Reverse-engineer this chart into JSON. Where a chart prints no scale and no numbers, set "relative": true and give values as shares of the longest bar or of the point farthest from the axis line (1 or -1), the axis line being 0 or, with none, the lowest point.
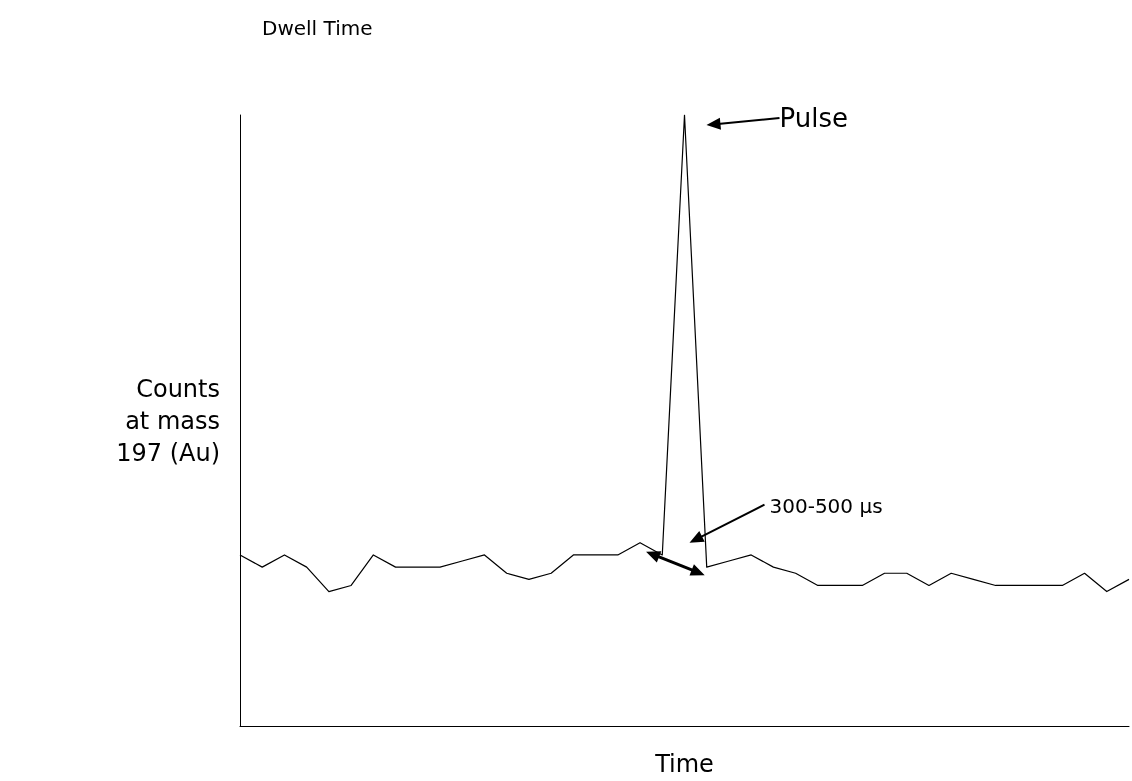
{
  "chart_data": {
    "type": "line",
    "relative": true,
    "xlabel": "Time",
    "ylabel": "Counts\nat mass\n197 (Au)",
    "categories": [
      null,
      null,
      null,
      null,
      null,
      null,
      null,
      null,
      null,
      null,
      null,
      null,
      null,
      null,
      null,
      null,
      null,
      null,
      null,
      null,
      null,
      null,
      null,
      null,
      null,
      null,
      null,
      null,
      null,
      null,
      null,
      null,
      null,
      null,
      null,
      null,
      null,
      null,
      null,
      null,
      null
    ],
    "series": [
      {
        "color": "#000000",
        "values": [
          0.28,
          0.26,
          0.28,
          0.26,
          0.22,
          0.23,
          0.28,
          0.26,
          0.26,
          0.26,
          0.27,
          0.28,
          0.25,
          0.24,
          0.25,
          0.28,
          0.28,
          0.28,
          0.3,
          0.28,
          1,
          0.26,
          0.27,
          0.28,
          0.26,
          0.25,
          0.23,
          0.23,
          0.23,
          0.25,
          0.25,
          0.23,
          0.25,
          0.24,
          0.23,
          0.23,
          0.23,
          0.23,
          0.25,
          0.22,
          0.24
        ]
      }
    ],
    "annotations": [
      "Dwell Time",
      "Pulse",
      "300-500 µs"
    ],
    "marker": "none",
    "line_style": "solid",
    "grid": false
  }
}
